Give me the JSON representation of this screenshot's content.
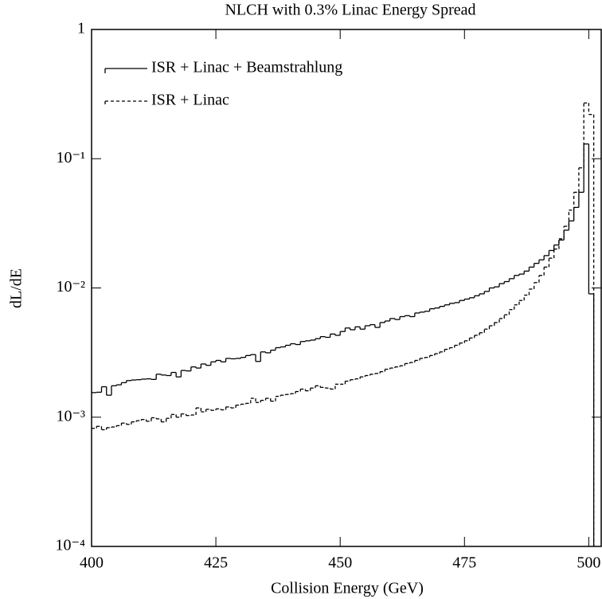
{
  "chart_data": {
    "type": "step_histogram",
    "title": "NLCH with 0.3% Linac Energy Spread",
    "xlabel": "Collision Energy (GeV)",
    "ylabel": "dL/dE",
    "log_y": true,
    "legend": "upper left",
    "xlim": [
      400,
      502.5
    ],
    "xticks": [
      400,
      425,
      450,
      475,
      500
    ],
    "ylim": [
      0.0001,
      1
    ],
    "yticks": [
      {
        "value": 1,
        "label": "1"
      },
      {
        "value": 0.1,
        "label": "10⁻¹"
      },
      {
        "value": 0.01,
        "label": "10⁻²"
      },
      {
        "value": 0.001,
        "label": "10⁻³"
      },
      {
        "value": 0.0001,
        "label": "10⁻⁴"
      }
    ],
    "bins": [
      400,
      401,
      402,
      403,
      404,
      405,
      406,
      407,
      408,
      409,
      410,
      411,
      412,
      413,
      414,
      415,
      416,
      417,
      418,
      419,
      420,
      421,
      422,
      423,
      424,
      425,
      426,
      427,
      428,
      429,
      430,
      431,
      432,
      433,
      434,
      435,
      436,
      437,
      438,
      439,
      440,
      441,
      442,
      443,
      444,
      445,
      446,
      447,
      448,
      449,
      450,
      451,
      452,
      453,
      454,
      455,
      456,
      457,
      458,
      459,
      460,
      461,
      462,
      463,
      464,
      465,
      466,
      467,
      468,
      469,
      470,
      471,
      472,
      473,
      474,
      475,
      476,
      477,
      478,
      479,
      480,
      481,
      482,
      483,
      484,
      485,
      486,
      487,
      488,
      489,
      490,
      491,
      492,
      493,
      494,
      495,
      496,
      497,
      498,
      499,
      500,
      501
    ],
    "series": [
      {
        "name": "ISR + Linac + Beamstrahlung",
        "color": "#000000",
        "line_style": "solid",
        "values": [
          0.00155,
          0.00156,
          0.00172,
          0.00148,
          0.00175,
          0.00178,
          0.00185,
          0.00192,
          0.00194,
          0.00195,
          0.00197,
          0.00198,
          0.00196,
          0.00215,
          0.00212,
          0.0021,
          0.00222,
          0.00205,
          0.0023,
          0.00228,
          0.00245,
          0.0024,
          0.00258,
          0.00252,
          0.00268,
          0.00275,
          0.00268,
          0.00285,
          0.00283,
          0.00285,
          0.0029,
          0.003,
          0.00305,
          0.0027,
          0.0032,
          0.00315,
          0.0033,
          0.00345,
          0.0035,
          0.0036,
          0.0037,
          0.00365,
          0.00385,
          0.0039,
          0.00395,
          0.00405,
          0.0042,
          0.00415,
          0.0044,
          0.0043,
          0.0046,
          0.0049,
          0.00475,
          0.005,
          0.0048,
          0.0051,
          0.0052,
          0.00495,
          0.0054,
          0.00555,
          0.0058,
          0.0057,
          0.006,
          0.0061,
          0.006,
          0.0064,
          0.0065,
          0.0066,
          0.0069,
          0.007,
          0.0072,
          0.0074,
          0.0076,
          0.0077,
          0.008,
          0.0082,
          0.0084,
          0.0087,
          0.009,
          0.0094,
          0.01,
          0.0102,
          0.0108,
          0.0112,
          0.0118,
          0.0125,
          0.0128,
          0.0135,
          0.0145,
          0.0155,
          0.0165,
          0.0178,
          0.0195,
          0.0215,
          0.0235,
          0.028,
          0.033,
          0.042,
          0.055,
          0.13,
          0.009
        ]
      },
      {
        "name": "ISR + Linac",
        "color": "#000000",
        "line_style": "dashed",
        "values": [
          0.00082,
          0.00085,
          0.0008,
          0.00083,
          0.00084,
          0.00086,
          0.0009,
          0.00088,
          0.00092,
          0.00094,
          0.00096,
          0.00093,
          0.00099,
          0.00097,
          0.00092,
          0.00098,
          0.00105,
          0.001,
          0.00106,
          0.00103,
          0.00104,
          0.00118,
          0.0011,
          0.00115,
          0.00113,
          0.00116,
          0.00114,
          0.0012,
          0.00118,
          0.00124,
          0.00126,
          0.00128,
          0.0014,
          0.0013,
          0.00135,
          0.0014,
          0.00133,
          0.00145,
          0.00148,
          0.0015,
          0.00152,
          0.00158,
          0.00165,
          0.0016,
          0.00168,
          0.00175,
          0.0017,
          0.00168,
          0.00165,
          0.0018,
          0.0018,
          0.0019,
          0.00195,
          0.00198,
          0.00205,
          0.0021,
          0.00215,
          0.00218,
          0.00225,
          0.00235,
          0.0024,
          0.00245,
          0.0025,
          0.0026,
          0.00265,
          0.00275,
          0.00285,
          0.0029,
          0.003,
          0.0031,
          0.0032,
          0.00335,
          0.00345,
          0.0036,
          0.00375,
          0.0039,
          0.0041,
          0.0043,
          0.0045,
          0.0048,
          0.0051,
          0.0054,
          0.0058,
          0.0062,
          0.0068,
          0.0074,
          0.008,
          0.0088,
          0.0098,
          0.011,
          0.0125,
          0.0145,
          0.017,
          0.02,
          0.024,
          0.03,
          0.04,
          0.055,
          0.085,
          0.27,
          0.22
        ]
      }
    ]
  }
}
